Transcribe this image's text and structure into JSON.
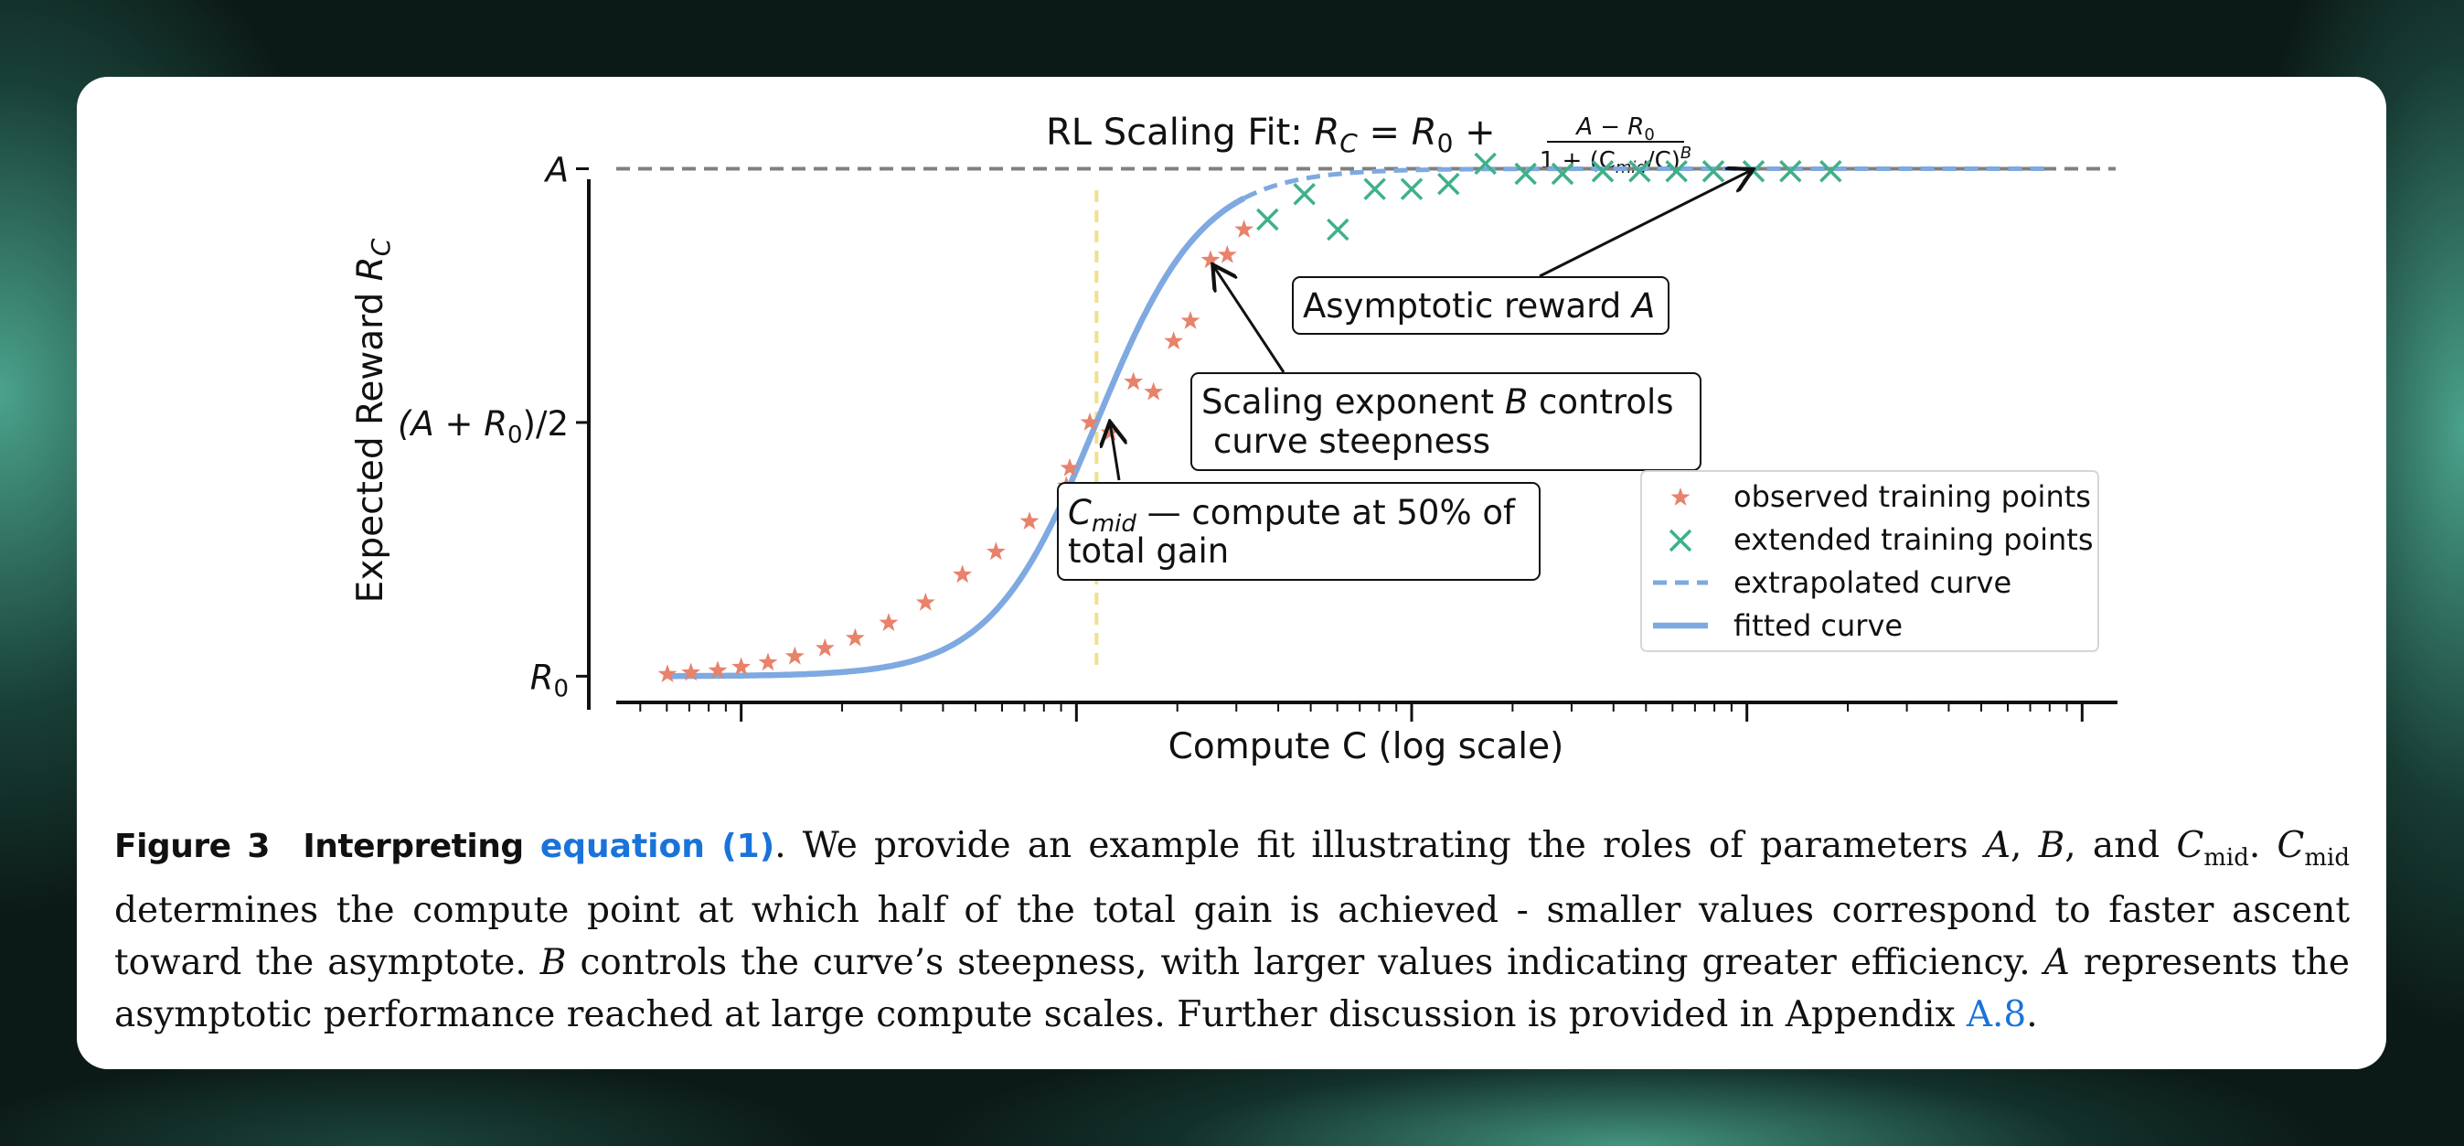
{
  "chart_data": {
    "type": "scatter",
    "title": "RL Scaling Fit: R_C = R_0 + (A − R_0) / (1 + (C_mid/C)^B)",
    "title_parts": {
      "prefix": "RL Scaling Fit: ",
      "lhs": "R",
      "lhs_sub": "C",
      "eq": " = ",
      "r0": "R",
      "r0_sub": "0",
      "plus": " + ",
      "num": "A − R",
      "num_sub": "0",
      "den_a": "1 + (C",
      "den_sub": "mid",
      "den_b": "/C)",
      "den_sup": "B"
    },
    "xlabel": "Compute  C  (log scale)",
    "ylabel": "Expected Reward  R_C",
    "ylabel_parts": {
      "text": "Expected Reward  ",
      "var": "R",
      "sub": "C"
    },
    "x_scale": "log",
    "x_tick_labels_shown": false,
    "xlim": [
      0.6,
      5.1
    ],
    "ylim": [
      -0.03,
      1.1
    ],
    "y_ticks": [
      {
        "value": 0,
        "label": "R",
        "sub": "0"
      },
      {
        "value": 0.5,
        "label": "(A + R",
        "sub": "0",
        "suffix": ")/2"
      },
      {
        "value": 1,
        "label": "A",
        "sub": ""
      }
    ],
    "params": {
      "A": 1.0,
      "R0": 0.0,
      "log_C_mid": 2.06,
      "B": 2.75
    },
    "asymptote_line": {
      "y": 1.0,
      "style": "dashed",
      "color": "#808080"
    },
    "c_mid_line": {
      "x": 2.06,
      "style": "dashed",
      "color": "#f2df8a"
    },
    "series": [
      {
        "name": "observed training points",
        "marker": "star",
        "color": "#e8826a",
        "points": [
          [
            0.78,
            0.004
          ],
          [
            0.85,
            0.007
          ],
          [
            0.93,
            0.011
          ],
          [
            1.0,
            0.018
          ],
          [
            1.08,
            0.027
          ],
          [
            1.16,
            0.039
          ],
          [
            1.25,
            0.055
          ],
          [
            1.34,
            0.075
          ],
          [
            1.44,
            0.105
          ],
          [
            1.55,
            0.145
          ],
          [
            1.66,
            0.2
          ],
          [
            1.76,
            0.245
          ],
          [
            1.86,
            0.305
          ],
          [
            1.97,
            0.375
          ],
          [
            1.98,
            0.41
          ],
          [
            2.04,
            0.5
          ],
          [
            2.1,
            0.48
          ],
          [
            2.17,
            0.58
          ],
          [
            2.23,
            0.56
          ],
          [
            2.29,
            0.66
          ],
          [
            2.34,
            0.7
          ],
          [
            2.4,
            0.82
          ],
          [
            2.45,
            0.83
          ],
          [
            2.5,
            0.88
          ]
        ]
      },
      {
        "name": "extended training points",
        "marker": "x",
        "color": "#3fb08a",
        "points": [
          [
            2.57,
            0.9
          ],
          [
            2.68,
            0.95
          ],
          [
            2.78,
            0.88
          ],
          [
            2.89,
            0.96
          ],
          [
            3.0,
            0.96
          ],
          [
            3.11,
            0.97
          ],
          [
            3.22,
            1.01
          ],
          [
            3.34,
            0.99
          ],
          [
            3.45,
            0.99
          ],
          [
            3.57,
            0.995
          ],
          [
            3.68,
            0.995
          ],
          [
            3.79,
            0.995
          ],
          [
            3.9,
            0.995
          ],
          [
            4.02,
            0.995
          ],
          [
            4.13,
            0.995
          ],
          [
            4.25,
            0.995
          ]
        ]
      },
      {
        "name": "extrapolated curve",
        "style": "dashed",
        "color": "#7ea9e1",
        "x_range": [
          2.5,
          4.9
        ]
      },
      {
        "name": "fitted curve",
        "style": "solid",
        "color": "#7ea9e1",
        "x_range": [
          0.78,
          2.5
        ]
      }
    ],
    "annotations": {
      "asymptotic": {
        "text_pre": "Asymptotic reward ",
        "text_var": "A",
        "target": [
          4.0,
          1.0
        ]
      },
      "scaling": {
        "line1_pre": "Scaling exponent ",
        "line1_var": "B",
        "line1_post": " controls",
        "line2": "curve steepness",
        "target": [
          2.4,
          0.81
        ]
      },
      "cmid": {
        "line1_var": "C",
        "line1_sub": "mid",
        "line1_post": " — compute at 50% of",
        "line2": "total gain",
        "target": [
          2.09,
          0.5
        ]
      }
    },
    "legend": {
      "placement": "lower right",
      "entries": [
        "observed training points",
        "extended training points",
        "extrapolated curve",
        "fitted curve"
      ]
    },
    "grid": false
  },
  "caption": {
    "label": "Figure 3",
    "title": "Interpreting",
    "link": "equation (1)",
    "s1": ". We provide an example fit illustrating the roles of parameters ",
    "A": "A",
    "B": "B",
    "comma": ", ",
    "and": ", and ",
    "C": "C",
    "mid": "mid",
    "dot": ". ",
    "s2": " determines the compute point at which half of the total gain is achieved - smaller values correspond to faster ascent toward the asymptote. ",
    "s3": " controls the curve’s steepness, with larger values indicating greater efficiency. ",
    "s4": " represents the asymptotic performance reached at large compute scales. Further discussion is provided in Appendix ",
    "appendix": "A.8",
    "end": "."
  }
}
